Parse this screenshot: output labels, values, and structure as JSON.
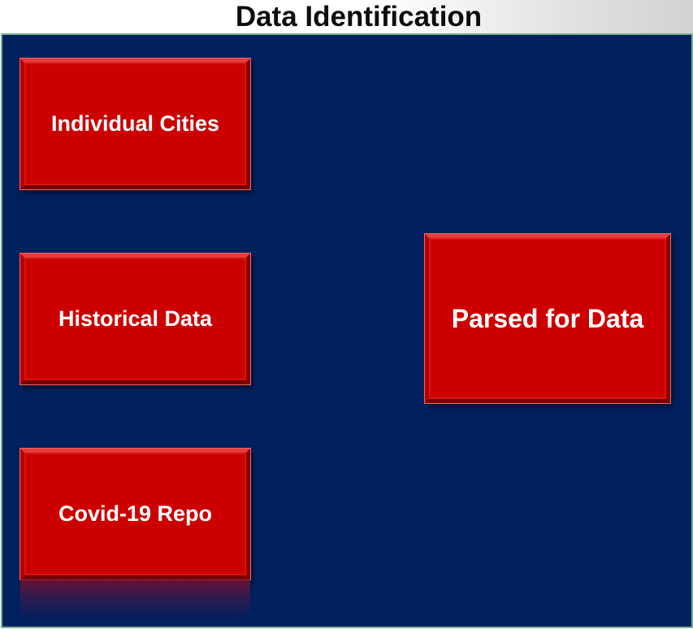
{
  "title": "Data Identification",
  "nodes": {
    "individual_cities": "Individual Cities",
    "historical_data": "Historical Data",
    "covid_repo": "Covid-19 Repo",
    "parsed": "Parsed for Data"
  },
  "colors": {
    "panel_background": "#00205e",
    "panel_border": "#7fb08f",
    "box_fill": "#cc0000",
    "box_text": "#ffffff",
    "title_text": "#0d0d0d"
  }
}
